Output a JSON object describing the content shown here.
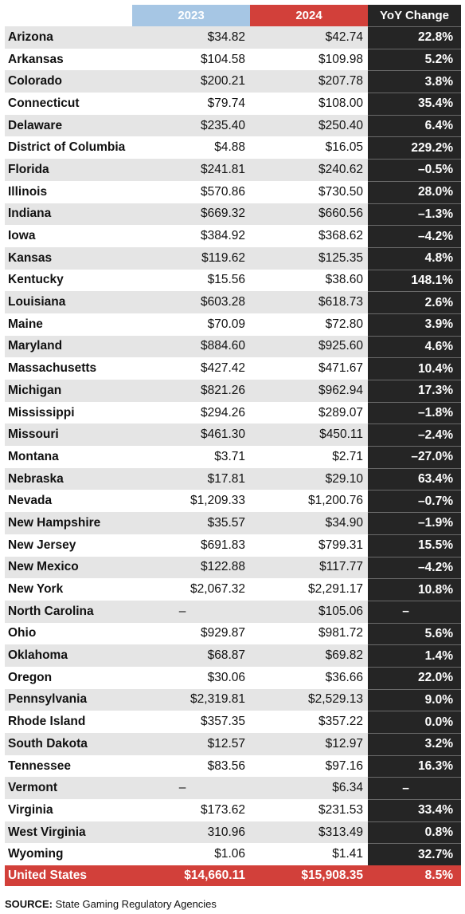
{
  "columns": {
    "year1": "2023",
    "year2": "2024",
    "change": "YoY Change"
  },
  "rows": [
    {
      "state": "Arizona",
      "v2023": "$34.82",
      "v2024": "$42.74",
      "yoy": "22.8%"
    },
    {
      "state": "Arkansas",
      "v2023": "$104.58",
      "v2024": "$109.98",
      "yoy": "5.2%"
    },
    {
      "state": "Colorado",
      "v2023": "$200.21",
      "v2024": "$207.78",
      "yoy": "3.8%"
    },
    {
      "state": "Connecticut",
      "v2023": "$79.74",
      "v2024": "$108.00",
      "yoy": "35.4%"
    },
    {
      "state": "Delaware",
      "v2023": "$235.40",
      "v2024": "$250.40",
      "yoy": "6.4%"
    },
    {
      "state": "District of Columbia",
      "v2023": "$4.88",
      "v2024": "$16.05",
      "yoy": "229.2%"
    },
    {
      "state": "Florida",
      "v2023": "$241.81",
      "v2024": "$240.62",
      "yoy": "–0.5%"
    },
    {
      "state": "Illinois",
      "v2023": "$570.86",
      "v2024": "$730.50",
      "yoy": "28.0%"
    },
    {
      "state": "Indiana",
      "v2023": "$669.32",
      "v2024": "$660.56",
      "yoy": "–1.3%"
    },
    {
      "state": "Iowa",
      "v2023": "$384.92",
      "v2024": "$368.62",
      "yoy": "–4.2%"
    },
    {
      "state": "Kansas",
      "v2023": "$119.62",
      "v2024": "$125.35",
      "yoy": "4.8%"
    },
    {
      "state": "Kentucky",
      "v2023": "$15.56",
      "v2024": "$38.60",
      "yoy": "148.1%"
    },
    {
      "state": "Louisiana",
      "v2023": "$603.28",
      "v2024": "$618.73",
      "yoy": "2.6%"
    },
    {
      "state": "Maine",
      "v2023": "$70.09",
      "v2024": "$72.80",
      "yoy": "3.9%"
    },
    {
      "state": "Maryland",
      "v2023": "$884.60",
      "v2024": "$925.60",
      "yoy": "4.6%"
    },
    {
      "state": "Massachusetts",
      "v2023": "$427.42",
      "v2024": "$471.67",
      "yoy": "10.4%"
    },
    {
      "state": "Michigan",
      "v2023": "$821.26",
      "v2024": "$962.94",
      "yoy": "17.3%"
    },
    {
      "state": "Mississippi",
      "v2023": "$294.26",
      "v2024": "$289.07",
      "yoy": "–1.8%"
    },
    {
      "state": "Missouri",
      "v2023": "$461.30",
      "v2024": "$450.11",
      "yoy": "–2.4%"
    },
    {
      "state": "Montana",
      "v2023": "$3.71",
      "v2024": "$2.71",
      "yoy": "–27.0%"
    },
    {
      "state": "Nebraska",
      "v2023": "$17.81",
      "v2024": "$29.10",
      "yoy": "63.4%"
    },
    {
      "state": "Nevada",
      "v2023": "$1,209.33",
      "v2024": "$1,200.76",
      "yoy": "–0.7%"
    },
    {
      "state": "New Hampshire",
      "v2023": "$35.57",
      "v2024": "$34.90",
      "yoy": "–1.9%"
    },
    {
      "state": "New Jersey",
      "v2023": "$691.83",
      "v2024": "$799.31",
      "yoy": "15.5%"
    },
    {
      "state": "New Mexico",
      "v2023": "$122.88",
      "v2024": "$117.77",
      "yoy": "–4.2%"
    },
    {
      "state": "New York",
      "v2023": "$2,067.32",
      "v2024": "$2,291.17",
      "yoy": "10.8%"
    },
    {
      "state": "North Carolina",
      "v2023": "–",
      "v2024": "$105.06",
      "yoy": "–"
    },
    {
      "state": "Ohio",
      "v2023": "$929.87",
      "v2024": "$981.72",
      "yoy": "5.6%"
    },
    {
      "state": "Oklahoma",
      "v2023": "$68.87",
      "v2024": "$69.82",
      "yoy": "1.4%"
    },
    {
      "state": "Oregon",
      "v2023": "$30.06",
      "v2024": "$36.66",
      "yoy": "22.0%"
    },
    {
      "state": "Pennsylvania",
      "v2023": "$2,319.81",
      "v2024": "$2,529.13",
      "yoy": "9.0%"
    },
    {
      "state": "Rhode Island",
      "v2023": "$357.35",
      "v2024": "$357.22",
      "yoy": "0.0%"
    },
    {
      "state": "South Dakota",
      "v2023": "$12.57",
      "v2024": "$12.97",
      "yoy": "3.2%"
    },
    {
      "state": "Tennessee",
      "v2023": "$83.56",
      "v2024": "$97.16",
      "yoy": "16.3%"
    },
    {
      "state": "Vermont",
      "v2023": "–",
      "v2024": "$6.34",
      "yoy": "–"
    },
    {
      "state": "Virginia",
      "v2023": "$173.62",
      "v2024": "$231.53",
      "yoy": "33.4%"
    },
    {
      "state": "West Virginia",
      "v2023": "310.96",
      "v2024": "$313.49",
      "yoy": "0.8%"
    },
    {
      "state": "Wyoming",
      "v2023": "$1.06",
      "v2024": "$1.41",
      "yoy": "32.7%"
    }
  ],
  "total": {
    "state": "United States",
    "v2023": "$14,660.11",
    "v2024": "$15,908.35",
    "yoy": "8.5%"
  },
  "source": {
    "label": "SOURCE:",
    "text": "State Gaming Regulatory Agencies"
  },
  "colors": {
    "year1_header": "#a6c6e4",
    "year2_header": "#d2403a",
    "change_column": "#252525",
    "total_row": "#d2403a",
    "row_shade": "#e5e5e5"
  }
}
